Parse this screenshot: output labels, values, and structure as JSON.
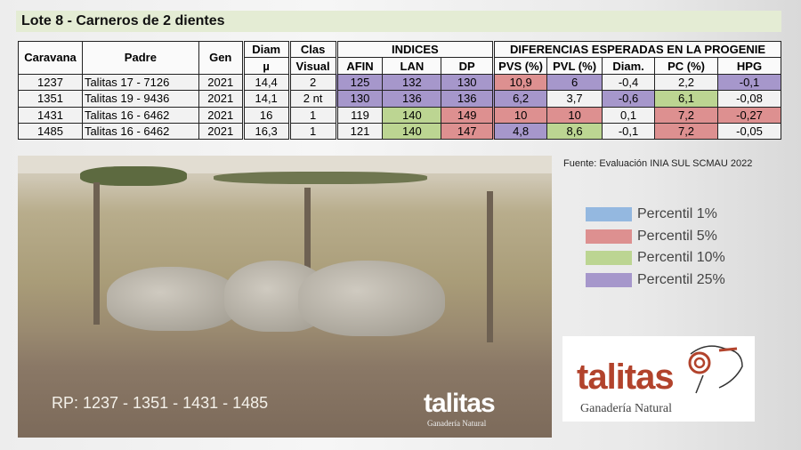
{
  "title": "Lote 8 - Carneros de 2 dientes",
  "table": {
    "headers": {
      "caravana": "Caravana",
      "padre": "Padre",
      "gen": "Gen",
      "diam": "Diam",
      "diam_unit": "µ",
      "clas": "Clas",
      "clas2": "Visual",
      "indices": "INDICES",
      "afin": "AFIN",
      "lan": "LAN",
      "dp": "DP",
      "dep": "DIFERENCIAS ESPERADAS EN LA PROGENIE",
      "pvs": "PVS (%)",
      "pvl": "PVL (%)",
      "diam2": "Diam.",
      "pc": "PC (%)",
      "hpg": "HPG"
    },
    "rows": [
      {
        "caravana": "1237",
        "padre": "Talitas 17 - 7126",
        "gen": "2021",
        "diam": "14,4",
        "clas": "2",
        "afin": "125",
        "lan": "132",
        "dp": "130",
        "pvs": "10,9",
        "pvl": "6",
        "diam2": "-0,4",
        "pc": "2,2",
        "hpg": "-0,1"
      },
      {
        "caravana": "1351",
        "padre": "Talitas 19 - 9436",
        "gen": "2021",
        "diam": "14,1",
        "clas": "2 nt",
        "afin": "130",
        "lan": "136",
        "dp": "136",
        "pvs": "6,2",
        "pvl": "3,7",
        "diam2": "-0,6",
        "pc": "6,1",
        "hpg": "-0,08"
      },
      {
        "caravana": "1431",
        "padre": "Talitas 16 - 6462",
        "gen": "2021",
        "diam": "16",
        "clas": "1",
        "afin": "119",
        "lan": "140",
        "dp": "149",
        "pvs": "10",
        "pvl": "10",
        "diam2": "0,1",
        "pc": "7,2",
        "hpg": "-0,27"
      },
      {
        "caravana": "1485",
        "padre": "Talitas 16 - 6462",
        "gen": "2021",
        "diam": "16,3",
        "clas": "1",
        "afin": "121",
        "lan": "140",
        "dp": "147",
        "pvs": "4,8",
        "pvl": "8,6",
        "diam2": "-0,1",
        "pc": "7,2",
        "hpg": "-0,05"
      }
    ]
  },
  "photo": {
    "caption": "RP: 1237 - 1351 - 1431 - 1485",
    "watermark": "talitas",
    "watermark_sub": "Ganadería Natural"
  },
  "source": "Fuente: Evaluación INIA SUL SCMAU 2022",
  "legend": [
    {
      "label": "Percentil 1%",
      "color": "#94b8e0"
    },
    {
      "label": "Percentil 5%",
      "color": "#dd9090"
    },
    {
      "label": "Percentil 10%",
      "color": "#bcd592"
    },
    {
      "label": "Percentil 25%",
      "color": "#a697cb"
    }
  ],
  "logo": {
    "name": "talitas",
    "tagline": "Ganadería Natural"
  }
}
